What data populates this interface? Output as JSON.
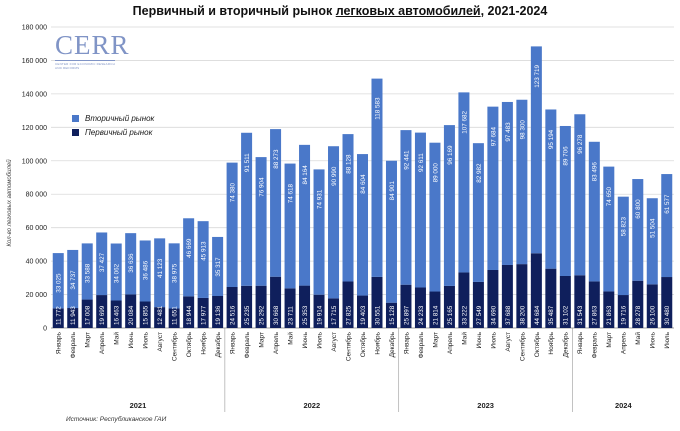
{
  "chart_data": {
    "type": "bar",
    "stacked": true,
    "title_before": "Первичный и вторичный рынок ",
    "title_underlined": "легковых автомобилей",
    "title_after": ", 2021-2024",
    "ylabel": "Кол-во легковых автомобилей",
    "ylim": [
      0,
      180000
    ],
    "yticks": [
      "0",
      "20 000",
      "40 000",
      "60 000",
      "80 000",
      "100 000",
      "120 000",
      "140 000",
      "160 000",
      "180 000"
    ],
    "ytick_values": [
      0,
      20000,
      40000,
      60000,
      80000,
      100000,
      120000,
      140000,
      160000,
      180000
    ],
    "categories": [
      "Январь",
      "Февраль",
      "Март",
      "Апрель",
      "Май",
      "Июнь",
      "Июль",
      "Август",
      "Сентябрь",
      "Октябрь",
      "Ноябрь",
      "Декабрь",
      "Январь",
      "Февраль",
      "Март",
      "Апрель",
      "Май",
      "Июнь",
      "Июль",
      "Август",
      "Сентябрь",
      "Октябрь",
      "Ноябрь",
      "Декабрь",
      "Январь",
      "Февраль",
      "Март",
      "Апрель",
      "Май",
      "Июнь",
      "Июль",
      "Август",
      "Сентябрь",
      "Октябрь",
      "Ноябрь",
      "Декабрь",
      "Январь",
      "Февраль",
      "Март",
      "Апрель",
      "Май",
      "Июнь",
      "Июль"
    ],
    "years": [
      {
        "label": "2021",
        "count": 12
      },
      {
        "label": "2022",
        "count": 12
      },
      {
        "label": "2023",
        "count": 12
      },
      {
        "label": "2024",
        "count": 7
      }
    ],
    "series": [
      {
        "name": "Первичный рынок",
        "color": "#0f1f5c",
        "values": [
          11772,
          11943,
          17008,
          19699,
          16463,
          20084,
          15855,
          12481,
          11651,
          18944,
          17977,
          19136,
          24516,
          25235,
          25292,
          30668,
          23711,
          25353,
          19914,
          17715,
          27825,
          19403,
          30551,
          15128,
          25897,
          24233,
          21814,
          25165,
          33222,
          27549,
          34690,
          37688,
          38200,
          44684,
          35487,
          31102,
          31543,
          27863,
          21863,
          19716,
          28278,
          26100,
          30480
        ]
      },
      {
        "name": "Вторичный рынок",
        "color": "#4a78c9",
        "values": [
          33025,
          34737,
          33588,
          37427,
          34062,
          36636,
          36486,
          41123,
          38975,
          46669,
          45913,
          35317,
          74380,
          91511,
          76904,
          88273,
          74618,
          84164,
          74931,
          90990,
          88128,
          84604,
          118583,
          84901,
          92441,
          92611,
          89000,
          96169,
          107682,
          82982,
          97684,
          97483,
          98300,
          123719,
          95194,
          89706,
          96278,
          83496,
          74650,
          58823,
          60800,
          51504,
          61577
        ]
      }
    ],
    "primary_labels": [
      "11 772",
      "11 943",
      "17 008",
      "19 699",
      "16 463",
      "20 084",
      "15 855",
      "12 481",
      "11 651",
      "18 944",
      "17 977",
      "19 136",
      "24 516",
      "25 235",
      "25 292",
      "30 668",
      "23 711",
      "25 353",
      "19 914",
      "17 715",
      "27 825",
      "19 403",
      "30 551",
      "15 128",
      "25 897",
      "24 233",
      "21 814",
      "25 165",
      "33 222",
      "27 549",
      "34 690",
      "37 688",
      "38 200",
      "44 684",
      "35 487",
      "31 102",
      "31 543",
      "27 863",
      "21 863",
      "19 716",
      "28 278",
      "26 100",
      "30 480"
    ],
    "secondary_labels": [
      "33 025",
      "34 737",
      "33 588",
      "37 427",
      "34 062",
      "36 636",
      "36 486",
      "41 123",
      "38 975",
      "46 669",
      "45 913",
      "35 317",
      "74 380",
      "91 511",
      "76 904",
      "88 273",
      "74 618",
      "84 164",
      "74 931",
      "90 990",
      "88 128",
      "84 604",
      "118 583",
      "84 901",
      "92 441",
      "92 611",
      "89 000",
      "96 169",
      "107 682",
      "82 982",
      "97 684",
      "97 483",
      "98 300",
      "123 719",
      "95 194",
      "89 706",
      "96 278",
      "83 496",
      "74 650",
      "58 823",
      "60 800",
      "51 504",
      "61 577"
    ],
    "legend_position": "top-left"
  },
  "source": "Источник: Республиканское ГАИ",
  "logo": {
    "text": "CERR",
    "subtitle": "CENTER FOR ECONOMIC RESEARCH AND REFORMS"
  }
}
